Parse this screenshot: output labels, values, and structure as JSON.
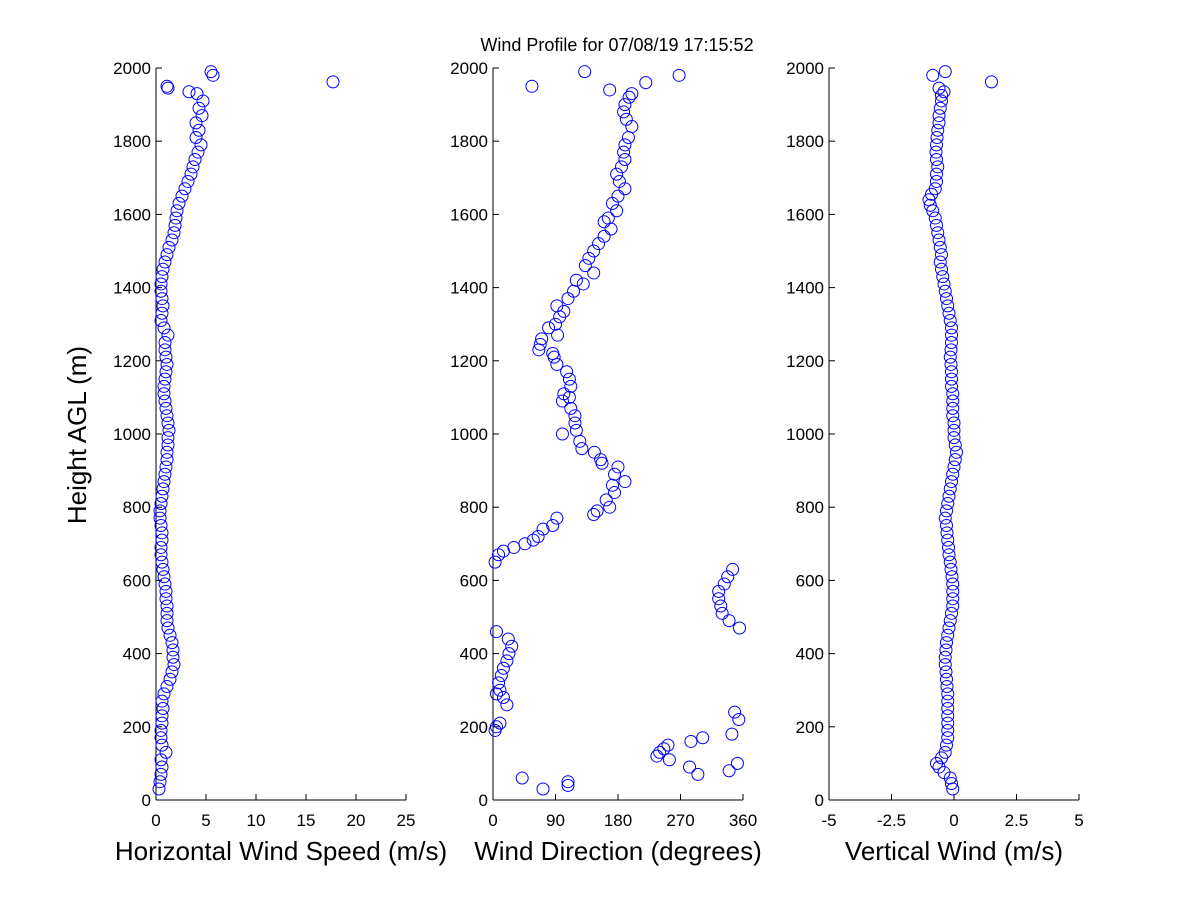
{
  "title": "Wind Profile for  07/08/19 17:15:52",
  "ylabel": "Height AGL (m)",
  "marker_color": "#0000ff",
  "chart_data": [
    {
      "type": "scatter",
      "xlabel": "Horizontal Wind Speed (m/s)",
      "ylabel": "Height AGL (m)",
      "xlim": [
        0,
        25
      ],
      "ylim": [
        0,
        2000
      ],
      "xticks": [
        "0",
        "5",
        "10",
        "15",
        "20",
        "25"
      ],
      "yticks": [
        "0",
        "200",
        "400",
        "600",
        "800",
        "1000",
        "1200",
        "1400",
        "1600",
        "1800",
        "2000"
      ],
      "grid": false,
      "points": [
        [
          0.3,
          30
        ],
        [
          0.4,
          50
        ],
        [
          0.5,
          70
        ],
        [
          0.6,
          90
        ],
        [
          0.5,
          110
        ],
        [
          1.0,
          130
        ],
        [
          0.6,
          150
        ],
        [
          0.5,
          170
        ],
        [
          0.5,
          190
        ],
        [
          0.6,
          210
        ],
        [
          0.6,
          230
        ],
        [
          0.7,
          250
        ],
        [
          0.6,
          270
        ],
        [
          0.8,
          290
        ],
        [
          1.1,
          310
        ],
        [
          1.4,
          330
        ],
        [
          1.6,
          350
        ],
        [
          1.8,
          370
        ],
        [
          1.7,
          390
        ],
        [
          1.7,
          410
        ],
        [
          1.6,
          430
        ],
        [
          1.4,
          450
        ],
        [
          1.2,
          470
        ],
        [
          1.1,
          490
        ],
        [
          1.1,
          510
        ],
        [
          1.1,
          530
        ],
        [
          1.0,
          550
        ],
        [
          1.0,
          570
        ],
        [
          0.9,
          590
        ],
        [
          0.8,
          610
        ],
        [
          0.7,
          630
        ],
        [
          0.6,
          650
        ],
        [
          0.5,
          670
        ],
        [
          0.5,
          690
        ],
        [
          0.6,
          710
        ],
        [
          0.6,
          730
        ],
        [
          0.5,
          750
        ],
        [
          0.4,
          770
        ],
        [
          0.4,
          790
        ],
        [
          0.5,
          810
        ],
        [
          0.6,
          830
        ],
        [
          0.7,
          850
        ],
        [
          0.8,
          870
        ],
        [
          0.9,
          890
        ],
        [
          1.0,
          910
        ],
        [
          1.1,
          930
        ],
        [
          1.1,
          950
        ],
        [
          1.2,
          970
        ],
        [
          1.2,
          990
        ],
        [
          1.3,
          1010
        ],
        [
          1.2,
          1030
        ],
        [
          1.1,
          1050
        ],
        [
          1.0,
          1070
        ],
        [
          0.9,
          1090
        ],
        [
          0.8,
          1110
        ],
        [
          0.8,
          1130
        ],
        [
          0.9,
          1150
        ],
        [
          1.0,
          1170
        ],
        [
          1.1,
          1190
        ],
        [
          1.0,
          1210
        ],
        [
          0.9,
          1230
        ],
        [
          0.9,
          1250
        ],
        [
          1.2,
          1270
        ],
        [
          0.8,
          1290
        ],
        [
          0.5,
          1310
        ],
        [
          0.6,
          1330
        ],
        [
          0.7,
          1350
        ],
        [
          0.6,
          1370
        ],
        [
          0.5,
          1390
        ],
        [
          0.5,
          1410
        ],
        [
          0.6,
          1430
        ],
        [
          0.7,
          1450
        ],
        [
          0.9,
          1470
        ],
        [
          1.1,
          1490
        ],
        [
          1.3,
          1510
        ],
        [
          1.6,
          1530
        ],
        [
          1.8,
          1550
        ],
        [
          1.9,
          1570
        ],
        [
          2.0,
          1590
        ],
        [
          2.1,
          1610
        ],
        [
          2.3,
          1630
        ],
        [
          2.6,
          1650
        ],
        [
          2.9,
          1670
        ],
        [
          3.2,
          1690
        ],
        [
          3.5,
          1710
        ],
        [
          3.7,
          1730
        ],
        [
          3.9,
          1750
        ],
        [
          4.2,
          1770
        ],
        [
          4.5,
          1790
        ],
        [
          4.0,
          1810
        ],
        [
          4.3,
          1830
        ],
        [
          4.0,
          1850
        ],
        [
          4.6,
          1870
        ],
        [
          4.3,
          1890
        ],
        [
          4.7,
          1910
        ],
        [
          4.1,
          1930
        ],
        [
          3.3,
          1935
        ],
        [
          1.2,
          1945
        ],
        [
          1.1,
          1950
        ],
        [
          17.7,
          1962
        ],
        [
          5.7,
          1980
        ],
        [
          5.5,
          1990
        ]
      ]
    },
    {
      "type": "scatter",
      "xlabel": "Wind Direction (degrees)",
      "xlim": [
        0,
        360
      ],
      "ylim": [
        0,
        2000
      ],
      "xticks": [
        "0",
        "90",
        "180",
        "270",
        "360"
      ],
      "yticks": [
        "0",
        "200",
        "400",
        "600",
        "800",
        "1000",
        "1200",
        "1400",
        "1600",
        "1800",
        "2000"
      ],
      "grid": false,
      "points": [
        [
          72,
          30
        ],
        [
          108,
          40
        ],
        [
          108,
          50
        ],
        [
          42,
          60
        ],
        [
          295,
          70
        ],
        [
          340,
          80
        ],
        [
          283,
          90
        ],
        [
          352,
          100
        ],
        [
          254,
          110
        ],
        [
          236,
          120
        ],
        [
          240,
          130
        ],
        [
          246,
          140
        ],
        [
          252,
          150
        ],
        [
          285,
          160
        ],
        [
          302,
          170
        ],
        [
          344,
          180
        ],
        [
          3,
          190
        ],
        [
          5,
          200
        ],
        [
          10,
          210
        ],
        [
          354,
          220
        ],
        [
          348,
          240
        ],
        [
          20,
          260
        ],
        [
          15,
          280
        ],
        [
          5,
          290
        ],
        [
          10,
          300
        ],
        [
          8,
          320
        ],
        [
          12,
          340
        ],
        [
          15,
          360
        ],
        [
          20,
          380
        ],
        [
          23,
          400
        ],
        [
          27,
          420
        ],
        [
          22,
          440
        ],
        [
          5,
          460
        ],
        [
          355,
          470
        ],
        [
          340,
          490
        ],
        [
          330,
          510
        ],
        [
          328,
          530
        ],
        [
          325,
          550
        ],
        [
          325,
          570
        ],
        [
          333,
          590
        ],
        [
          338,
          610
        ],
        [
          345,
          630
        ],
        [
          3,
          650
        ],
        [
          8,
          670
        ],
        [
          15,
          680
        ],
        [
          30,
          690
        ],
        [
          46,
          700
        ],
        [
          58,
          710
        ],
        [
          65,
          720
        ],
        [
          72,
          740
        ],
        [
          86,
          750
        ],
        [
          92,
          770
        ],
        [
          145,
          780
        ],
        [
          150,
          790
        ],
        [
          168,
          800
        ],
        [
          163,
          820
        ],
        [
          175,
          840
        ],
        [
          172,
          860
        ],
        [
          190,
          870
        ],
        [
          175,
          890
        ],
        [
          180,
          910
        ],
        [
          157,
          920
        ],
        [
          155,
          930
        ],
        [
          146,
          950
        ],
        [
          128,
          960
        ],
        [
          125,
          980
        ],
        [
          100,
          1000
        ],
        [
          120,
          1010
        ],
        [
          118,
          1030
        ],
        [
          118,
          1050
        ],
        [
          112,
          1070
        ],
        [
          100,
          1090
        ],
        [
          110,
          1100
        ],
        [
          102,
          1110
        ],
        [
          112,
          1130
        ],
        [
          110,
          1150
        ],
        [
          106,
          1170
        ],
        [
          92,
          1190
        ],
        [
          88,
          1210
        ],
        [
          86,
          1220
        ],
        [
          66,
          1230
        ],
        [
          68,
          1245
        ],
        [
          70,
          1260
        ],
        [
          93,
          1270
        ],
        [
          80,
          1290
        ],
        [
          90,
          1300
        ],
        [
          96,
          1320
        ],
        [
          102,
          1335
        ],
        [
          92,
          1350
        ],
        [
          108,
          1370
        ],
        [
          116,
          1390
        ],
        [
          130,
          1410
        ],
        [
          120,
          1420
        ],
        [
          145,
          1440
        ],
        [
          133,
          1460
        ],
        [
          138,
          1480
        ],
        [
          145,
          1500
        ],
        [
          152,
          1520
        ],
        [
          160,
          1540
        ],
        [
          170,
          1560
        ],
        [
          160,
          1580
        ],
        [
          166,
          1590
        ],
        [
          178,
          1610
        ],
        [
          172,
          1630
        ],
        [
          180,
          1650
        ],
        [
          190,
          1670
        ],
        [
          182,
          1690
        ],
        [
          178,
          1710
        ],
        [
          185,
          1730
        ],
        [
          190,
          1750
        ],
        [
          188,
          1770
        ],
        [
          190,
          1790
        ],
        [
          195,
          1810
        ],
        [
          200,
          1840
        ],
        [
          192,
          1860
        ],
        [
          188,
          1880
        ],
        [
          190,
          1900
        ],
        [
          196,
          1920
        ],
        [
          200,
          1930
        ],
        [
          168,
          1940
        ],
        [
          56,
          1950
        ],
        [
          220,
          1960
        ],
        [
          268,
          1980
        ],
        [
          132,
          1990
        ]
      ]
    },
    {
      "type": "scatter",
      "xlabel": "Vertical Wind (m/s)",
      "xlim": [
        -5,
        5
      ],
      "ylim": [
        0,
        2000
      ],
      "xticks": [
        "-5",
        "-2.5",
        "0",
        "2.5",
        "5"
      ],
      "yticks": [
        "0",
        "200",
        "400",
        "600",
        "800",
        "1000",
        "1200",
        "1400",
        "1600",
        "1800",
        "2000"
      ],
      "grid": false,
      "points": [
        [
          -0.05,
          30
        ],
        [
          -0.1,
          45
        ],
        [
          -0.15,
          60
        ],
        [
          -0.4,
          75
        ],
        [
          -0.6,
          90
        ],
        [
          -0.7,
          100
        ],
        [
          -0.5,
          115
        ],
        [
          -0.35,
          130
        ],
        [
          -0.3,
          150
        ],
        [
          -0.25,
          170
        ],
        [
          -0.25,
          190
        ],
        [
          -0.25,
          210
        ],
        [
          -0.25,
          230
        ],
        [
          -0.25,
          250
        ],
        [
          -0.25,
          270
        ],
        [
          -0.25,
          290
        ],
        [
          -0.28,
          310
        ],
        [
          -0.3,
          330
        ],
        [
          -0.32,
          350
        ],
        [
          -0.35,
          370
        ],
        [
          -0.35,
          390
        ],
        [
          -0.32,
          410
        ],
        [
          -0.3,
          430
        ],
        [
          -0.25,
          450
        ],
        [
          -0.2,
          470
        ],
        [
          -0.15,
          490
        ],
        [
          -0.1,
          510
        ],
        [
          -0.05,
          530
        ],
        [
          -0.05,
          550
        ],
        [
          -0.05,
          570
        ],
        [
          -0.05,
          590
        ],
        [
          -0.08,
          610
        ],
        [
          -0.12,
          630
        ],
        [
          -0.15,
          650
        ],
        [
          -0.2,
          670
        ],
        [
          -0.22,
          690
        ],
        [
          -0.25,
          710
        ],
        [
          -0.28,
          730
        ],
        [
          -0.3,
          750
        ],
        [
          -0.35,
          770
        ],
        [
          -0.3,
          790
        ],
        [
          -0.25,
          810
        ],
        [
          -0.2,
          830
        ],
        [
          -0.15,
          850
        ],
        [
          -0.1,
          870
        ],
        [
          -0.05,
          890
        ],
        [
          0.0,
          910
        ],
        [
          0.05,
          930
        ],
        [
          0.1,
          950
        ],
        [
          0.05,
          970
        ],
        [
          0.0,
          990
        ],
        [
          0.0,
          1010
        ],
        [
          0.0,
          1030
        ],
        [
          -0.05,
          1050
        ],
        [
          -0.05,
          1070
        ],
        [
          -0.05,
          1090
        ],
        [
          -0.05,
          1110
        ],
        [
          -0.1,
          1130
        ],
        [
          -0.1,
          1150
        ],
        [
          -0.1,
          1170
        ],
        [
          -0.12,
          1190
        ],
        [
          -0.15,
          1210
        ],
        [
          -0.12,
          1230
        ],
        [
          -0.1,
          1250
        ],
        [
          -0.1,
          1270
        ],
        [
          -0.1,
          1290
        ],
        [
          -0.15,
          1310
        ],
        [
          -0.2,
          1330
        ],
        [
          -0.25,
          1350
        ],
        [
          -0.3,
          1370
        ],
        [
          -0.35,
          1390
        ],
        [
          -0.4,
          1410
        ],
        [
          -0.45,
          1430
        ],
        [
          -0.5,
          1450
        ],
        [
          -0.55,
          1470
        ],
        [
          -0.5,
          1490
        ],
        [
          -0.55,
          1510
        ],
        [
          -0.6,
          1530
        ],
        [
          -0.65,
          1550
        ],
        [
          -0.7,
          1570
        ],
        [
          -0.75,
          1590
        ],
        [
          -0.85,
          1610
        ],
        [
          -0.95,
          1625
        ],
        [
          -1.0,
          1640
        ],
        [
          -0.9,
          1655
        ],
        [
          -0.75,
          1670
        ],
        [
          -0.7,
          1690
        ],
        [
          -0.7,
          1710
        ],
        [
          -0.65,
          1730
        ],
        [
          -0.7,
          1750
        ],
        [
          -0.72,
          1770
        ],
        [
          -0.7,
          1790
        ],
        [
          -0.68,
          1810
        ],
        [
          -0.65,
          1830
        ],
        [
          -0.6,
          1850
        ],
        [
          -0.6,
          1870
        ],
        [
          -0.55,
          1890
        ],
        [
          -0.5,
          1910
        ],
        [
          -0.5,
          1925
        ],
        [
          -0.4,
          1935
        ],
        [
          -0.6,
          1945
        ],
        [
          1.5,
          1962
        ],
        [
          -0.85,
          1980
        ],
        [
          -0.35,
          1990
        ]
      ]
    }
  ]
}
